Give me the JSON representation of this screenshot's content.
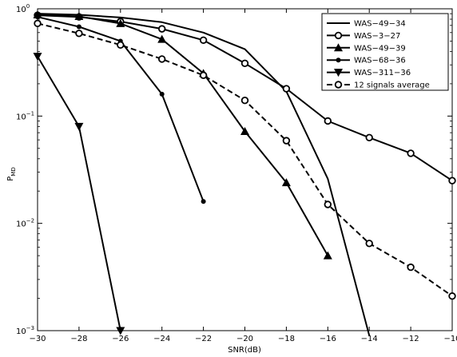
{
  "chart_data": {
    "type": "line",
    "title": "",
    "xlabel": "SNR(dB)",
    "ylabel": "P",
    "ylabel_subscript": "MD",
    "yscale": "log",
    "xlim": [
      -30,
      -10
    ],
    "ylim": [
      0.001,
      1
    ],
    "grid": false,
    "legend_position": "top-right",
    "x_ticks": [
      -30,
      -28,
      -26,
      -24,
      -22,
      -20,
      -18,
      -16,
      -14,
      -12,
      -10
    ],
    "x_tick_labels": [
      "−30",
      "−28",
      "−26",
      "−24",
      "−22",
      "−20",
      "−18",
      "−16",
      "−14",
      "−12",
      "−10"
    ],
    "y_ticks": [
      {
        "value": 1,
        "base": "10",
        "exp": "0"
      },
      {
        "value": 0.1,
        "base": "10",
        "exp": "−1"
      },
      {
        "value": 0.01,
        "base": "10",
        "exp": "−2"
      },
      {
        "value": 0.001,
        "base": "10",
        "exp": "−3"
      }
    ],
    "series": [
      {
        "name": "WAS−49−34",
        "marker": "none",
        "dash": false,
        "x": [
          -30,
          -28,
          -26,
          -24,
          -22,
          -20,
          -18,
          -16,
          -14
        ],
        "y": [
          0.9,
          0.88,
          0.83,
          0.75,
          0.6,
          0.42,
          0.17,
          0.026,
          0.0009
        ]
      },
      {
        "name": "WAS−3−27",
        "marker": "circle-open",
        "dash": false,
        "x": [
          -30,
          -28,
          -26,
          -24,
          -22,
          -20,
          -18,
          -16,
          -14,
          -12,
          -10
        ],
        "y": [
          0.87,
          0.84,
          0.76,
          0.65,
          0.51,
          0.31,
          0.18,
          0.09,
          0.063,
          0.045,
          0.025
        ]
      },
      {
        "name": "WAS−49−39",
        "marker": "triangle-up",
        "dash": false,
        "x": [
          -30,
          -28,
          -26,
          -24,
          -22,
          -20,
          -18,
          -16
        ],
        "y": [
          0.88,
          0.85,
          0.73,
          0.52,
          0.25,
          0.072,
          0.024,
          0.005
        ]
      },
      {
        "name": "WAS−68−36",
        "marker": "dot",
        "dash": false,
        "x": [
          -30,
          -28,
          -26,
          -24,
          -22
        ],
        "y": [
          0.84,
          0.68,
          0.5,
          0.16,
          0.016
        ]
      },
      {
        "name": "WAS−311−36",
        "marker": "triangle-down",
        "dash": false,
        "x": [
          -30,
          -28,
          -26
        ],
        "y": [
          0.36,
          0.08,
          0.001
        ]
      },
      {
        "name": "12 signals average",
        "marker": "circle-open",
        "dash": true,
        "x": [
          -30,
          -28,
          -26,
          -24,
          -22,
          -20,
          -18,
          -16,
          -14,
          -12,
          -10
        ],
        "y": [
          0.73,
          0.59,
          0.46,
          0.34,
          0.24,
          0.14,
          0.059,
          0.015,
          0.0065,
          0.0039,
          0.0021
        ]
      }
    ]
  }
}
